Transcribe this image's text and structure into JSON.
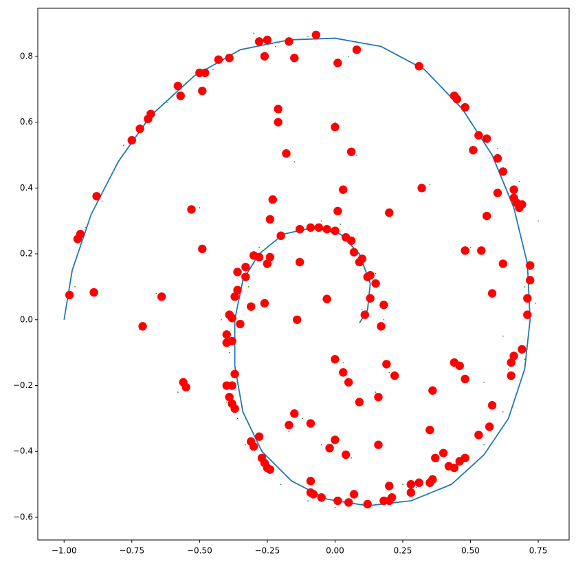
{
  "chart_data": {
    "type": "scatter",
    "xlim": [
      -1.097,
      0.864
    ],
    "ylim": [
      -0.669,
      0.946
    ],
    "xticks": [
      {
        "value": -1.0,
        "label": "−1.00"
      },
      {
        "value": -0.75,
        "label": "−0.75"
      },
      {
        "value": -0.5,
        "label": "−0.50"
      },
      {
        "value": -0.25,
        "label": "−0.25"
      },
      {
        "value": 0,
        "label": "0.00"
      },
      {
        "value": 0.25,
        "label": "0.25"
      },
      {
        "value": 0.5,
        "label": "0.50"
      },
      {
        "value": 0.75,
        "label": "0.75"
      }
    ],
    "yticks": [
      {
        "value": -0.6,
        "label": "−0.6"
      },
      {
        "value": -0.4,
        "label": "−0.4"
      },
      {
        "value": -0.2,
        "label": "−0.2"
      },
      {
        "value": 0,
        "label": "0.0"
      },
      {
        "value": 0.2,
        "label": "0.2"
      },
      {
        "value": 0.4,
        "label": "0.4"
      },
      {
        "value": 0.6,
        "label": "0.6"
      },
      {
        "value": 0.8,
        "label": "0.8"
      }
    ],
    "grid": false,
    "series": [
      {
        "kind": "line",
        "color": "#1f77b4",
        "x": [
          -1,
          -0.97,
          -0.9,
          -0.8,
          -0.68,
          -0.52,
          -0.35,
          -0.17,
          0,
          0.17,
          0.33,
          0.47,
          0.58,
          0.66,
          0.71,
          0.72,
          0.7,
          0.64,
          0.55,
          0.43,
          0.28,
          0.12,
          -0.03,
          -0.16,
          -0.27,
          -0.34,
          -0.37,
          -0.37,
          -0.34,
          -0.28,
          -0.19,
          -0.08,
          0.02,
          0.09,
          0.13,
          0.12,
          0.09
        ],
        "y": [
          0,
          0.15,
          0.32,
          0.48,
          0.62,
          0.74,
          0.82,
          0.85,
          0.855,
          0.83,
          0.76,
          0.64,
          0.5,
          0.34,
          0.17,
          0,
          -0.15,
          -0.3,
          -0.41,
          -0.5,
          -0.55,
          -0.565,
          -0.545,
          -0.49,
          -0.4,
          -0.28,
          -0.14,
          0,
          0.12,
          0.2,
          0.26,
          0.28,
          0.26,
          0.2,
          0.11,
          0.03,
          -0.01
        ]
      },
      {
        "kind": "scatter",
        "color": "green",
        "marker_size": 1,
        "x": [
          -0.3,
          -0.22,
          -0.1,
          0.05,
          -0.45,
          -0.55,
          -0.62,
          -0.7,
          -0.78,
          0.4,
          0.5,
          0.6,
          0.68,
          0.75,
          0.7,
          0.62,
          -0.92,
          -0.86,
          -0.96,
          -0.5,
          -0.2,
          0.0,
          0.08,
          -0.15,
          -0.35,
          -0.32,
          -0.28,
          -0.42,
          -0.39,
          0.15,
          0.18,
          0.1,
          -0.05,
          0.02,
          -0.4,
          -0.36,
          -0.33,
          -0.25,
          -0.2,
          -0.1,
          0.0,
          0.1,
          0.2,
          0.3,
          0.45,
          0.55,
          0.62,
          0.7,
          0.74,
          0.5,
          0.35,
          -0.58,
          -0.72,
          -0.66,
          0.25,
          0.38,
          0.45,
          -0.12,
          -0.17,
          0.03,
          0.06,
          -0.05,
          0.15,
          0.2,
          0.55,
          0.64
        ],
        "y": [
          0.87,
          0.83,
          0.86,
          0.8,
          0.76,
          0.72,
          0.66,
          0.6,
          0.53,
          0.7,
          0.6,
          0.52,
          0.42,
          0.3,
          0.1,
          -0.05,
          0.28,
          0.36,
          0.1,
          0.34,
          0.63,
          0.6,
          0.5,
          0.48,
          0.15,
          0.1,
          0.22,
          0.0,
          -0.1,
          0.14,
          0.0,
          0.03,
          0.3,
          0.29,
          -0.25,
          -0.3,
          -0.38,
          -0.45,
          -0.5,
          -0.55,
          -0.57,
          -0.56,
          -0.56,
          -0.51,
          -0.44,
          -0.38,
          -0.28,
          -0.12,
          0.05,
          0.22,
          0.41,
          -0.22,
          -0.03,
          0.08,
          -0.5,
          -0.43,
          -0.13,
          -0.3,
          -0.34,
          -0.13,
          -0.42,
          -0.38,
          -0.22,
          -0.16,
          -0.19,
          -0.15
        ]
      },
      {
        "kind": "scatter",
        "color": "red",
        "marker_size": 100,
        "x": [
          -0.07,
          -0.25,
          -0.28,
          -0.17,
          0.08,
          -0.39,
          -0.43,
          -0.15,
          -0.26,
          0.01,
          0.31,
          -0.5,
          -0.48,
          -0.58,
          -0.49,
          -0.57,
          0.44,
          0.45,
          0.48,
          -0.21,
          -0.68,
          -0.69,
          -0.72,
          -0.21,
          0.0,
          0.53,
          0.56,
          -0.75,
          0.51,
          0.06,
          -0.18,
          0.6,
          0.62,
          0.03,
          0.66,
          0.32,
          0.6,
          -0.88,
          0.66,
          -0.23,
          0.67,
          0.69,
          0.68,
          -0.53,
          0.01,
          0.2,
          0.56,
          -0.24,
          -0.13,
          -0.09,
          -0.06,
          -0.03,
          0.0,
          -0.94,
          -0.95,
          -0.2,
          0.04,
          0.06,
          -0.49,
          0.48,
          0.54,
          0.07,
          -0.3,
          -0.28,
          -0.24,
          0.1,
          0.09,
          -0.13,
          0.62,
          -0.25,
          -0.33,
          0.72,
          -0.36,
          -0.33,
          0.13,
          0.12,
          0.15,
          0.72,
          -0.36,
          -0.37,
          -0.98,
          -0.89,
          -0.64,
          0.58,
          0.13,
          0.71,
          -0.03,
          -0.26,
          0.18,
          -0.31,
          -0.39,
          0.11,
          0.71,
          -0.38,
          -0.14,
          -0.35,
          -0.71,
          0.17,
          -0.4,
          -0.4,
          -0.38,
          0.69,
          0.66,
          0.0,
          0.65,
          0.19,
          0.44,
          0.46,
          0.03,
          -0.37,
          0.65,
          0.22,
          0.48,
          0.05,
          -0.56,
          -0.55,
          -0.4,
          -0.38,
          0.36,
          -0.39,
          0.16,
          0.09,
          -0.38,
          0.58,
          -0.37,
          -0.15,
          -0.09,
          -0.17,
          0.57,
          0.35,
          0.53,
          -0.28,
          0.0,
          -0.31,
          -0.3,
          0.16,
          -0.02,
          0.4,
          0.04,
          -0.27,
          0.37,
          0.48,
          0.46,
          -0.26,
          0.42,
          -0.25,
          0.44,
          -0.24,
          0.36,
          -0.09,
          0.31,
          0.28,
          0.35,
          0.2,
          0.28,
          -0.09,
          -0.08,
          0.07,
          -0.05,
          0.21,
          0.2,
          0.18,
          0.01,
          0.05,
          0.12
        ],
        "y": [
          0.865,
          0.85,
          0.845,
          0.845,
          0.82,
          0.795,
          0.79,
          0.795,
          0.8,
          0.78,
          0.77,
          0.75,
          0.75,
          0.71,
          0.695,
          0.68,
          0.68,
          0.67,
          0.645,
          0.64,
          0.625,
          0.61,
          0.58,
          0.6,
          0.585,
          0.56,
          0.55,
          0.545,
          0.515,
          0.51,
          0.505,
          0.49,
          0.45,
          0.395,
          0.395,
          0.4,
          0.385,
          0.375,
          0.37,
          0.365,
          0.355,
          0.35,
          0.34,
          0.335,
          0.33,
          0.325,
          0.315,
          0.305,
          0.275,
          0.28,
          0.28,
          0.275,
          0.27,
          0.26,
          0.245,
          0.255,
          0.25,
          0.24,
          0.215,
          0.21,
          0.21,
          0.205,
          0.195,
          0.19,
          0.19,
          0.185,
          0.175,
          0.175,
          0.17,
          0.17,
          0.16,
          0.165,
          0.145,
          0.13,
          0.135,
          0.13,
          0.11,
          0.12,
          0.09,
          0.07,
          0.075,
          0.083,
          0.07,
          0.08,
          0.065,
          0.065,
          0.063,
          0.05,
          0.045,
          0.04,
          0.015,
          0.015,
          0.015,
          0.005,
          0.0,
          -0.013,
          -0.02,
          -0.02,
          -0.045,
          -0.07,
          -0.065,
          -0.09,
          -0.11,
          -0.12,
          -0.13,
          -0.135,
          -0.13,
          -0.14,
          -0.16,
          -0.165,
          -0.17,
          -0.17,
          -0.18,
          -0.19,
          -0.19,
          -0.205,
          -0.2,
          -0.2,
          -0.215,
          -0.235,
          -0.235,
          -0.25,
          -0.255,
          -0.26,
          -0.27,
          -0.285,
          -0.315,
          -0.32,
          -0.325,
          -0.335,
          -0.35,
          -0.355,
          -0.365,
          -0.37,
          -0.385,
          -0.38,
          -0.39,
          -0.405,
          -0.41,
          -0.42,
          -0.42,
          -0.42,
          -0.43,
          -0.435,
          -0.445,
          -0.45,
          -0.45,
          -0.455,
          -0.485,
          -0.49,
          -0.495,
          -0.5,
          -0.495,
          -0.505,
          -0.525,
          -0.525,
          -0.53,
          -0.53,
          -0.54,
          -0.54,
          -0.55,
          -0.55,
          -0.55,
          -0.555,
          -0.56
        ]
      }
    ]
  }
}
